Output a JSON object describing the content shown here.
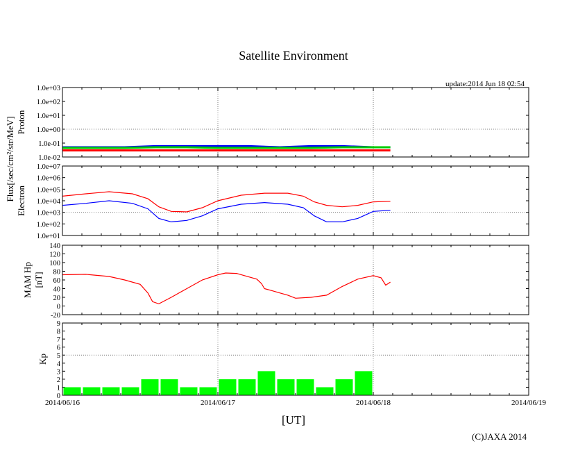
{
  "page": {
    "title": "Satellite Environment",
    "update_label": "update:2014 Jun 18 02:54",
    "x_axis_label": "[UT]",
    "copyright": "(C)JAXA 2014",
    "flux_unit_label": "Flux[/sec/cm²/str/MeV]"
  },
  "chart_data": [
    {
      "type": "line",
      "panel": "proton",
      "ylabel": "Proton",
      "yscale": "log",
      "ylim": [
        0.01,
        1000
      ],
      "yticks": [
        "1.0e-02",
        "1.0e-01",
        "1.0e+00",
        "1.0e+01",
        "1.0e+02",
        "1.0e+03"
      ],
      "grid": "dotted",
      "x_unit": "days since 2014/06/16 00:00 UT",
      "series": [
        {
          "color": "#ff0000",
          "x": [
            0,
            0.2,
            0.4,
            0.6,
            0.8,
            1.0,
            1.2,
            1.4,
            1.6,
            1.8,
            2.0,
            2.11
          ],
          "y": [
            0.03,
            0.03,
            0.03,
            0.03,
            0.03,
            0.03,
            0.03,
            0.03,
            0.03,
            0.03,
            0.03,
            0.03
          ]
        },
        {
          "color": "#0000ff",
          "x": [
            0,
            0.2,
            0.4,
            0.6,
            0.8,
            1.0,
            1.2,
            1.4,
            1.6,
            1.8,
            2.0,
            2.11
          ],
          "y": [
            0.05,
            0.05,
            0.05,
            0.06,
            0.06,
            0.06,
            0.06,
            0.05,
            0.06,
            0.06,
            0.05,
            0.05
          ]
        },
        {
          "color": "#00cc00",
          "x": [
            0,
            0.2,
            0.4,
            0.6,
            0.8,
            1.0,
            1.2,
            1.4,
            1.6,
            1.8,
            2.0,
            2.11
          ],
          "y": [
            0.045,
            0.045,
            0.045,
            0.05,
            0.05,
            0.045,
            0.045,
            0.045,
            0.045,
            0.05,
            0.05,
            0.05
          ]
        }
      ]
    },
    {
      "type": "line",
      "panel": "electron",
      "ylabel": "Electron",
      "yscale": "log",
      "ylim": [
        10,
        10000000
      ],
      "yticks": [
        "1.0e+01",
        "1.0e+02",
        "1.0e+03",
        "1.0e+04",
        "1.0e+05",
        "1.0e+06",
        "1.0e+07"
      ],
      "grid": "dotted",
      "x_unit": "days since 2014/06/16 00:00 UT",
      "series": [
        {
          "color": "#ff0000",
          "x": [
            0,
            0.15,
            0.3,
            0.45,
            0.55,
            0.62,
            0.7,
            0.8,
            0.9,
            1.0,
            1.15,
            1.3,
            1.45,
            1.55,
            1.62,
            1.7,
            1.8,
            1.9,
            2.0,
            2.11
          ],
          "y": [
            25000,
            40000,
            60000,
            40000,
            15000,
            3000,
            1200,
            1100,
            2500,
            10000,
            30000,
            45000,
            45000,
            25000,
            8000,
            4000,
            3000,
            4000,
            8000,
            9000
          ]
        },
        {
          "color": "#0000ff",
          "x": [
            0,
            0.15,
            0.3,
            0.45,
            0.55,
            0.62,
            0.7,
            0.8,
            0.9,
            1.0,
            1.15,
            1.3,
            1.45,
            1.55,
            1.62,
            1.7,
            1.8,
            1.9,
            2.0,
            2.11
          ],
          "y": [
            4000,
            6000,
            10000,
            6000,
            2000,
            300,
            150,
            200,
            500,
            2000,
            5000,
            7000,
            5000,
            2500,
            500,
            150,
            150,
            300,
            1200,
            1500
          ]
        }
      ]
    },
    {
      "type": "line",
      "panel": "mam",
      "ylabel": "MAM Hp",
      "ylabel_unit": "[nT]",
      "ylim": [
        -20,
        140
      ],
      "yticks": [
        "-20",
        "0",
        "20",
        "40",
        "60",
        "80",
        "100",
        "120",
        "140"
      ],
      "grid": "dotted",
      "x_unit": "days since 2014/06/16 00:00 UT",
      "series": [
        {
          "color": "#ff0000",
          "x": [
            0,
            0.15,
            0.3,
            0.4,
            0.5,
            0.55,
            0.58,
            0.62,
            0.7,
            0.8,
            0.9,
            1.0,
            1.05,
            1.12,
            1.25,
            1.28,
            1.3,
            1.35,
            1.4,
            1.45,
            1.5,
            1.6,
            1.7,
            1.8,
            1.9,
            2.0,
            2.05,
            2.08,
            2.11
          ],
          "y": [
            72,
            73,
            68,
            60,
            50,
            30,
            10,
            5,
            20,
            40,
            60,
            72,
            76,
            75,
            62,
            52,
            40,
            35,
            30,
            25,
            18,
            20,
            25,
            45,
            62,
            70,
            65,
            48,
            55
          ]
        }
      ]
    },
    {
      "type": "bar",
      "panel": "kp",
      "ylabel": "Kp",
      "ylim": [
        0,
        9
      ],
      "yticks": [
        "0",
        "1",
        "2",
        "3",
        "4",
        "5",
        "6",
        "7",
        "8",
        "9"
      ],
      "grid": "dotted",
      "bar_color": "#00ff00",
      "x_unit": "days since 2014/06/16 00:00 UT",
      "x": [
        0,
        0.125,
        0.25,
        0.375,
        0.5,
        0.625,
        0.75,
        0.875,
        1.0,
        1.125,
        1.25,
        1.375,
        1.5,
        1.625,
        1.75,
        1.875
      ],
      "values": [
        1,
        1,
        1,
        1,
        2,
        2,
        1,
        1,
        2,
        2,
        3,
        2,
        2,
        1,
        2,
        3
      ],
      "bar_width_days": 0.125
    }
  ],
  "x_axis": {
    "ticks": [
      "2014/06/16",
      "2014/06/17",
      "2014/06/18",
      "2014/06/19"
    ],
    "range_days": [
      0,
      3
    ]
  },
  "colors": {
    "red": "#ff0000",
    "blue": "#0000ff",
    "green": "#00cc00",
    "kp_green": "#00ff00",
    "grid": "#808080"
  }
}
